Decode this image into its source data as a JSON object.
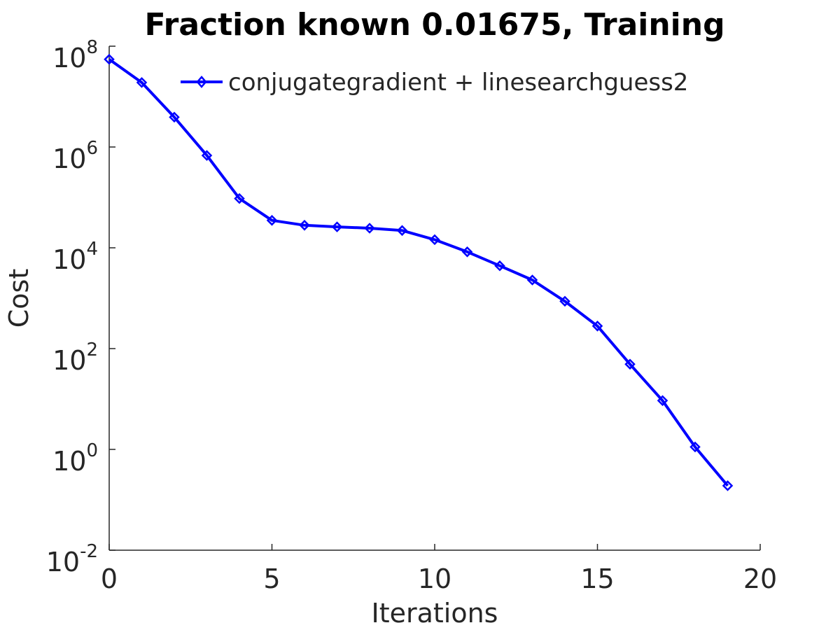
{
  "chart_data": {
    "type": "line",
    "title": "Fraction known 0.01675, Training",
    "xlabel": "Iterations",
    "ylabel": "Cost",
    "xlim": [
      0,
      20
    ],
    "ylim": [
      0.01,
      100000000
    ],
    "yscale": "log",
    "grid": false,
    "legend_position": "top-right",
    "x_ticks": [
      {
        "value": 0,
        "label": "0"
      },
      {
        "value": 5,
        "label": "5"
      },
      {
        "value": 10,
        "label": "10"
      },
      {
        "value": 15,
        "label": "15"
      },
      {
        "value": 20,
        "label": "20"
      }
    ],
    "y_ticks": [
      {
        "value": 0.01,
        "base": "10",
        "exp": "-2"
      },
      {
        "value": 1,
        "base": "10",
        "exp": "0"
      },
      {
        "value": 100,
        "base": "10",
        "exp": "2"
      },
      {
        "value": 10000,
        "base": "10",
        "exp": "4"
      },
      {
        "value": 1000000,
        "base": "10",
        "exp": "6"
      },
      {
        "value": 100000000,
        "base": "10",
        "exp": "8"
      }
    ],
    "series": [
      {
        "name": "conjugategradient + linesearchguess2",
        "color": "#0000ff",
        "marker": "diamond",
        "x": [
          0,
          1,
          2,
          3,
          4,
          5,
          6,
          7,
          8,
          9,
          10,
          11,
          12,
          13,
          14,
          15,
          16,
          17,
          18,
          19
        ],
        "y": [
          55000000,
          19000000,
          3900000,
          680000,
          95000,
          35000,
          28000,
          26000,
          24500,
          22000,
          14500,
          8300,
          4400,
          2300,
          870,
          280,
          49,
          9.3,
          1.12,
          0.19
        ]
      }
    ]
  }
}
